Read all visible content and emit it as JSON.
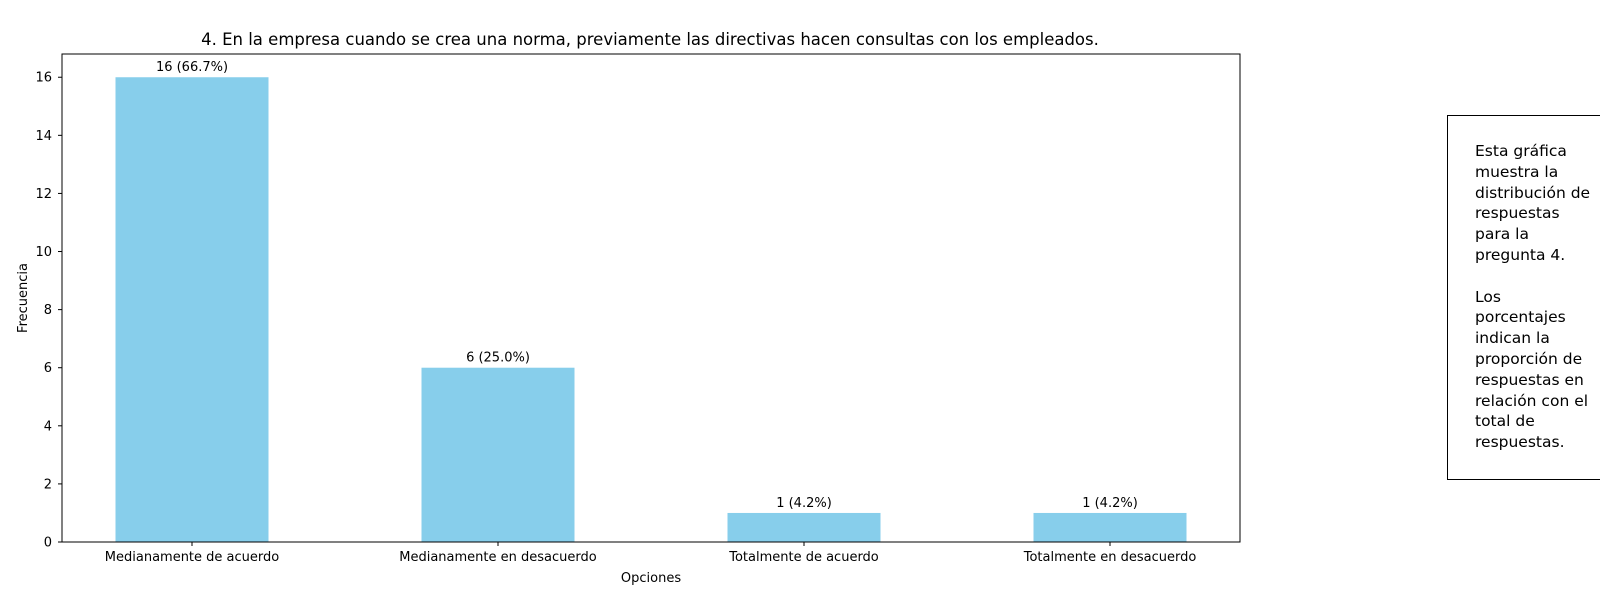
{
  "chart_data": {
    "type": "bar",
    "title": "4. En la empresa cuando se crea una norma, previamente las directivas hacen consultas con los empleados.",
    "xlabel": "Opciones",
    "ylabel": "Frecuencia",
    "categories": [
      "Medianamente de acuerdo",
      "Medianamente en desacuerdo",
      "Totalmente de acuerdo",
      "Totalmente en desacuerdo"
    ],
    "values": [
      16,
      6,
      1,
      1
    ],
    "value_labels": [
      "16 (66.7%)",
      "6 (25.0%)",
      "1 (4.2%)",
      "1 (4.2%)"
    ],
    "ylim": [
      0,
      16.8
    ],
    "yticks": [
      0,
      2,
      4,
      6,
      8,
      10,
      12,
      14,
      16
    ],
    "bar_color": "#87ceeb",
    "grid": false
  },
  "note": {
    "text": "Esta gráfica\nmuestra la\ndistribución de\nrespuestas\npara la\npregunta 4.\n\nLos\nporcentajes\nindican la\nproporción de\nrespuestas en\nrelación con el\ntotal de\nrespuestas."
  }
}
